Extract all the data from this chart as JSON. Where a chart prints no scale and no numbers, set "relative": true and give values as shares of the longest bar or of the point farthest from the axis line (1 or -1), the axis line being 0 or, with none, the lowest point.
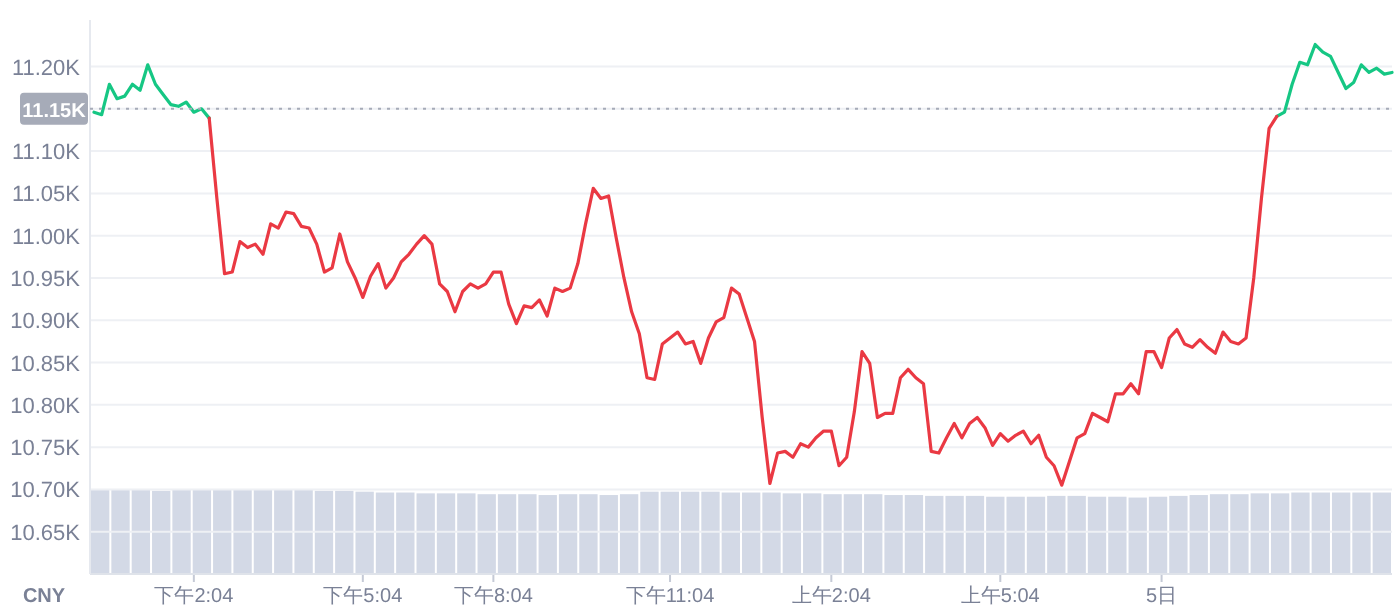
{
  "chart_data": [
    {
      "type": "line",
      "grid": "y",
      "ylim": [
        10600,
        11255
      ],
      "categories": [
        null,
        null,
        null,
        null,
        null,
        null,
        null,
        null,
        null,
        null,
        null,
        null,
        null,
        "下午2:04",
        null,
        null,
        null,
        null,
        null,
        null,
        null,
        null,
        null,
        null,
        null,
        null,
        null,
        null,
        null,
        null,
        null,
        null,
        null,
        null,
        null,
        "下午5:04",
        null,
        null,
        null,
        null,
        null,
        null,
        null,
        null,
        null,
        null,
        null,
        null,
        null,
        null,
        null,
        null,
        "下午8:04",
        null,
        null,
        null,
        null,
        null,
        null,
        null,
        null,
        null,
        null,
        null,
        null,
        null,
        null,
        null,
        null,
        null,
        null,
        null,
        null,
        null,
        null,
        "下午11:04",
        null,
        null,
        null,
        null,
        null,
        null,
        null,
        null,
        null,
        null,
        null,
        null,
        null,
        null,
        null,
        null,
        null,
        null,
        null,
        null,
        "上午2:04",
        null,
        null,
        null,
        null,
        null,
        null,
        null,
        null,
        null,
        null,
        null,
        null,
        null,
        null,
        null,
        null,
        null,
        null,
        null,
        null,
        null,
        "上午5:04",
        null,
        null,
        null,
        null,
        null,
        null,
        null,
        null,
        null,
        null,
        null,
        null,
        null,
        null,
        null,
        null,
        null,
        null,
        null,
        null,
        "5日",
        null,
        null,
        null,
        null,
        null,
        null,
        null,
        null,
        null,
        null,
        null,
        null,
        null,
        null,
        null,
        null,
        null,
        null,
        null,
        null,
        null,
        null,
        null,
        null,
        null,
        null,
        null,
        null,
        null,
        null
      ],
      "yticks": [
        {
          "value": 10650,
          "label": "10.65K"
        },
        {
          "value": 10700,
          "label": "10.70K"
        },
        {
          "value": 10750,
          "label": "10.75K"
        },
        {
          "value": 10800,
          "label": "10.80K"
        },
        {
          "value": 10850,
          "label": "10.85K"
        },
        {
          "value": 10900,
          "label": "10.90K"
        },
        {
          "value": 10950,
          "label": "10.95K"
        },
        {
          "value": 11000,
          "label": "11.00K"
        },
        {
          "value": 11050,
          "label": "11.05K"
        },
        {
          "value": 11100,
          "label": "11.10K"
        },
        {
          "value": 11150,
          "label": null
        },
        {
          "value": 11200,
          "label": "11.20K"
        }
      ],
      "ref_lines": [
        {
          "axis": "y",
          "value": 11150,
          "label": "11.15K",
          "line_style": "dotted",
          "color": "#a6abb8"
        }
      ],
      "annotations": [
        "CNY"
      ],
      "series": [
        {
          "color": "#16c784",
          "values": [
            11146,
            11143,
            11179,
            11162,
            11165,
            11179,
            11172,
            11202,
            11179,
            11167,
            11155,
            11153,
            11158,
            11146,
            11150,
            11139,
            null,
            null,
            null,
            null,
            null,
            null,
            null,
            null,
            null,
            null,
            null,
            null,
            null,
            null,
            null,
            null,
            null,
            null,
            null,
            null,
            null,
            null,
            null,
            null,
            null,
            null,
            null,
            null,
            null,
            null,
            null,
            null,
            null,
            null,
            null,
            null,
            null,
            null,
            null,
            null,
            null,
            null,
            null,
            null,
            null,
            null,
            null,
            null,
            null,
            null,
            null,
            null,
            null,
            null,
            null,
            null,
            null,
            null,
            null,
            null,
            null,
            null,
            null,
            null,
            null,
            null,
            null,
            null,
            null,
            null,
            null,
            null,
            null,
            null,
            null,
            null,
            null,
            null,
            null,
            null,
            null,
            null,
            null,
            null,
            null,
            null,
            null,
            null,
            null,
            null,
            null,
            null,
            null,
            null,
            null,
            null,
            null,
            null,
            null,
            null,
            null,
            null,
            null,
            null,
            null,
            null,
            null,
            null,
            null,
            null,
            null,
            null,
            null,
            null,
            null,
            null,
            null,
            null,
            null,
            null,
            null,
            null,
            null,
            null,
            null,
            null,
            null,
            null,
            null,
            null,
            null,
            null,
            null,
            null,
            null,
            null,
            null,
            null,
            11141,
            11146,
            11179,
            11205,
            11202,
            11226,
            11217,
            11212,
            11193,
            11174,
            11181,
            11202,
            11193,
            11198,
            11191,
            11193
          ]
        },
        {
          "color": "#ea3943",
          "values": [
            null,
            null,
            null,
            null,
            null,
            null,
            null,
            null,
            null,
            null,
            null,
            null,
            null,
            null,
            null,
            11139,
            11044,
            10955,
            10957,
            10993,
            10986,
            10990,
            10978,
            11014,
            11009,
            11028,
            11026,
            11011,
            11009,
            10990,
            10957,
            10962,
            11002,
            10969,
            10950,
            10927,
            10952,
            10967,
            10938,
            10950,
            10969,
            10978,
            10990,
            11000,
            10990,
            10943,
            10934,
            10910,
            10934,
            10943,
            10938,
            10943,
            10957,
            10957,
            10919,
            10896,
            10917,
            10915,
            10924,
            10905,
            10938,
            10934,
            10938,
            10967,
            11014,
            11056,
            11044,
            11047,
            10997,
            10950,
            10910,
            10884,
            10832,
            10830,
            10872,
            10879,
            10886,
            10872,
            10875,
            10849,
            10879,
            10898,
            10903,
            10938,
            10931,
            10903,
            10875,
            10785,
            10707,
            10743,
            10745,
            10738,
            10754,
            10750,
            10761,
            10769,
            10769,
            10728,
            10738,
            10792,
            10863,
            10849,
            10785,
            10790,
            10790,
            10832,
            10842,
            10832,
            10825,
            10745,
            10743,
            10761,
            10778,
            10761,
            10778,
            10785,
            10773,
            10752,
            10766,
            10757,
            10764,
            10769,
            10754,
            10764,
            10738,
            10728,
            10705,
            10733,
            10761,
            10766,
            10790,
            10785,
            10780,
            10813,
            10813,
            10825,
            10813,
            10863,
            10863,
            10844,
            10879,
            10889,
            10872,
            10868,
            10877,
            10868,
            10861,
            10886,
            10875,
            10872,
            10879,
            10950,
            11044,
            11127,
            11141,
            null,
            null,
            null,
            null,
            null,
            null,
            null,
            null,
            null,
            null,
            null,
            null,
            null,
            null,
            null
          ]
        }
      ]
    },
    {
      "type": "bar",
      "relative": true,
      "color": "#d3d9e6",
      "categories": [
        null,
        null,
        null,
        null,
        null,
        null,
        null,
        null,
        null,
        null,
        null,
        null,
        null,
        null,
        null,
        null,
        null,
        null,
        null,
        null,
        null,
        null,
        null,
        null,
        null,
        null,
        null,
        null,
        null,
        null,
        null,
        null,
        null,
        null,
        null,
        null,
        null,
        null,
        null,
        null,
        null,
        null,
        null,
        null,
        null,
        null,
        null,
        null,
        null,
        null,
        null,
        null,
        null,
        null,
        null,
        null,
        null,
        null,
        null,
        null,
        null,
        null,
        null,
        null
      ],
      "values": [
        1.0,
        1.0,
        1.0,
        0.99,
        1.0,
        1.0,
        1.0,
        1.0,
        1.0,
        1.0,
        1.0,
        0.99,
        0.99,
        0.98,
        0.97,
        0.97,
        0.96,
        0.96,
        0.96,
        0.95,
        0.95,
        0.95,
        0.94,
        0.95,
        0.95,
        0.94,
        0.95,
        0.98,
        0.98,
        0.98,
        0.98,
        0.97,
        0.97,
        0.97,
        0.96,
        0.96,
        0.95,
        0.95,
        0.95,
        0.94,
        0.94,
        0.93,
        0.93,
        0.93,
        0.92,
        0.92,
        0.92,
        0.93,
        0.93,
        0.92,
        0.92,
        0.91,
        0.92,
        0.93,
        0.94,
        0.95,
        0.95,
        0.96,
        0.96,
        0.97,
        0.97,
        0.97,
        0.97,
        0.97
      ]
    }
  ]
}
